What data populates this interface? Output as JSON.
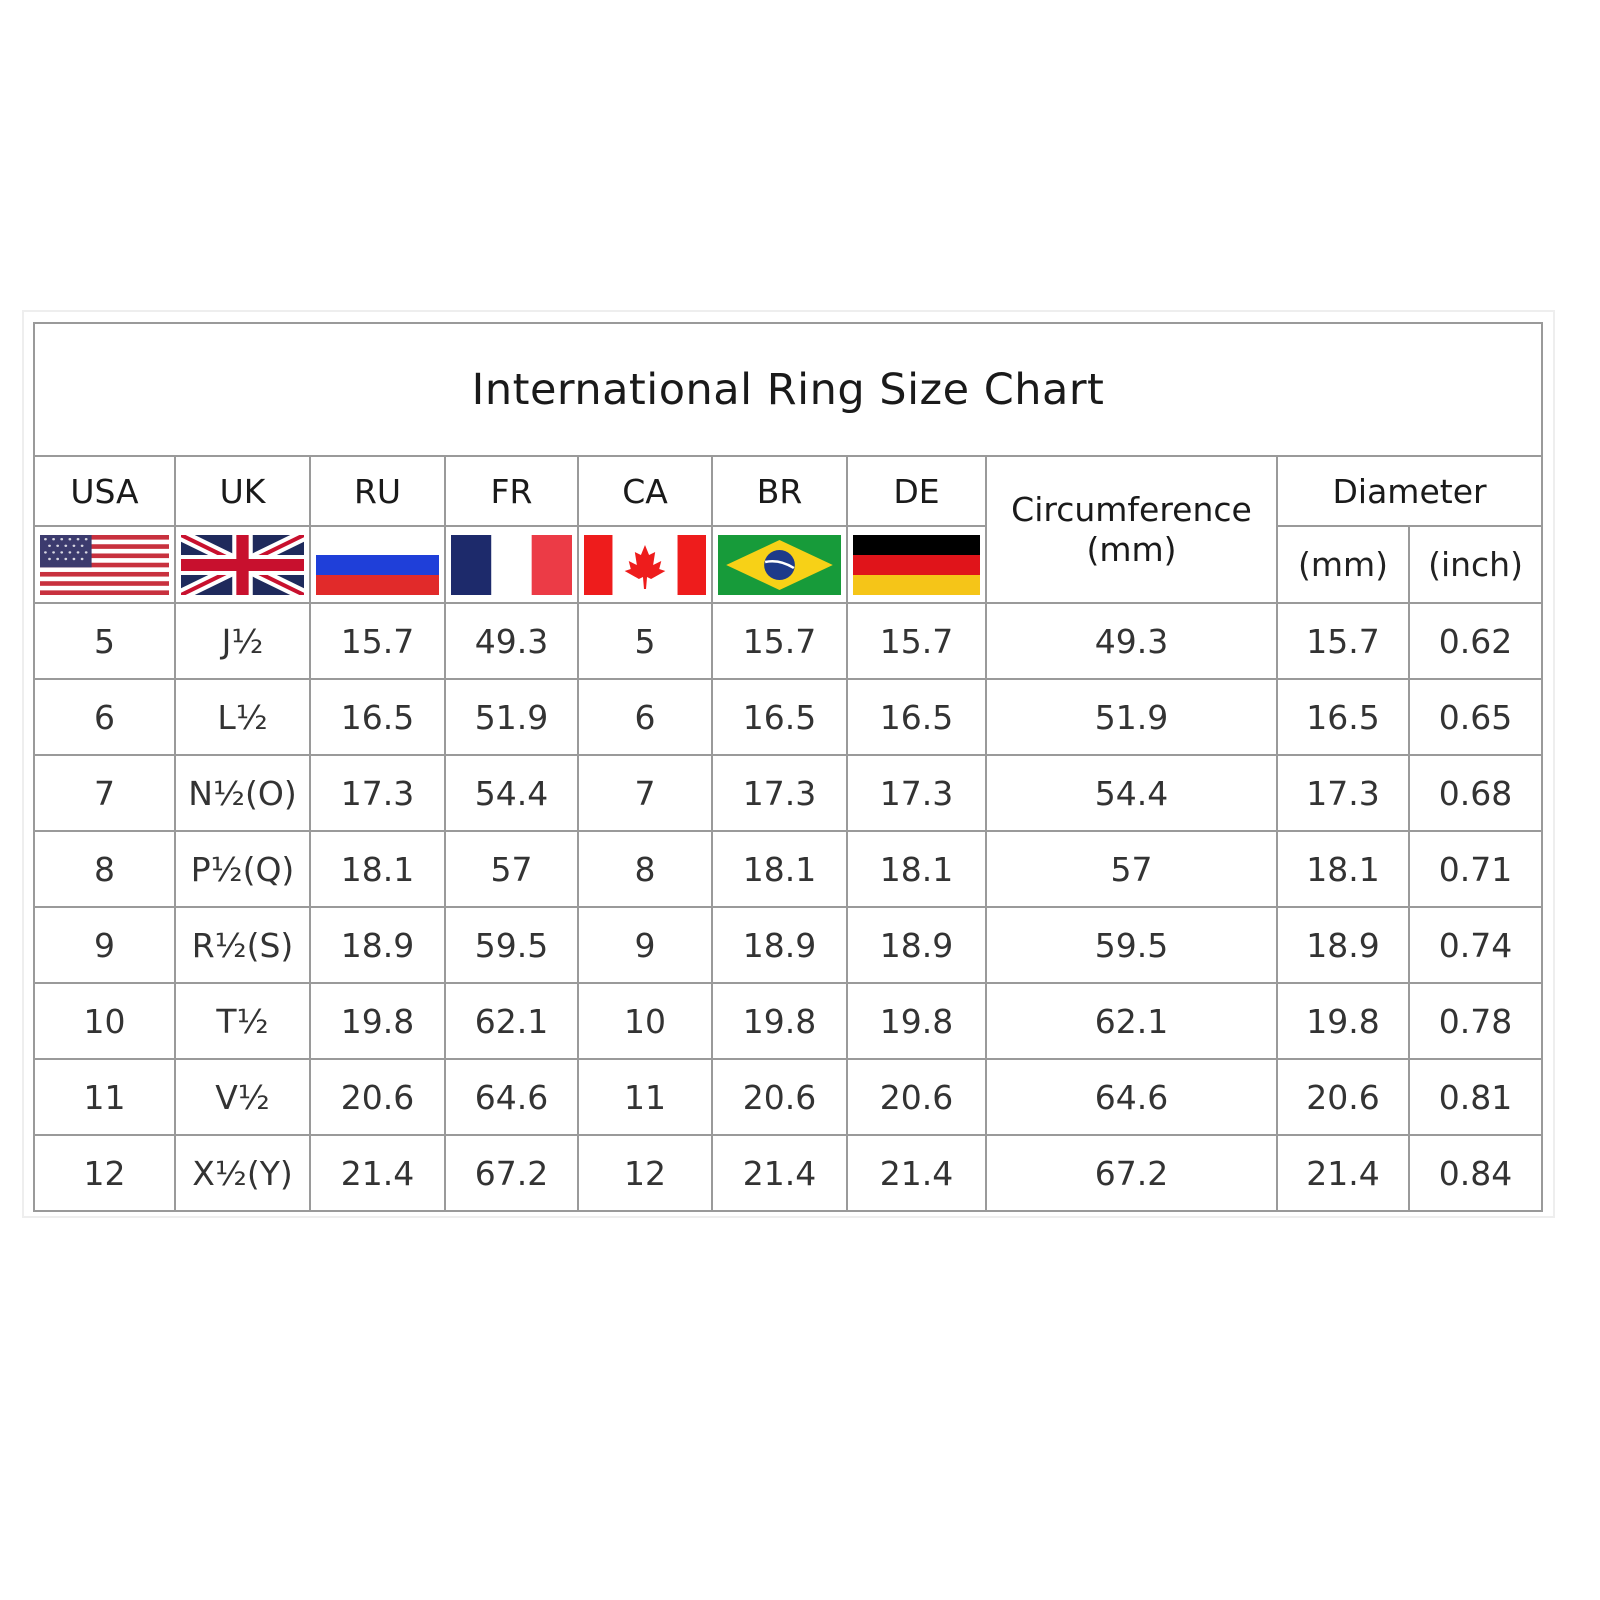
{
  "title": "International Ring Size Chart",
  "headers": {
    "countries": [
      "USA",
      "UK",
      "RU",
      "FR",
      "CA",
      "BR",
      "DE"
    ],
    "circumference": "Circumference",
    "circumference_unit": "(mm)",
    "diameter": "Diameter",
    "diameter_mm": "(mm)",
    "diameter_inch": "(inch)"
  },
  "flags": [
    "us-flag",
    "uk-flag",
    "russia-flag",
    "france-flag",
    "canada-flag",
    "brazil-flag",
    "germany-flag"
  ],
  "chart_data": {
    "type": "table",
    "title": "International Ring Size Chart",
    "columns": [
      "USA",
      "UK",
      "RU",
      "FR",
      "CA",
      "BR",
      "DE",
      "Circumference (mm)",
      "Diameter (mm)",
      "Diameter (inch)"
    ],
    "rows": [
      [
        "5",
        "J½",
        "15.7",
        "49.3",
        "5",
        "15.7",
        "15.7",
        "49.3",
        "15.7",
        "0.62"
      ],
      [
        "6",
        "L½",
        "16.5",
        "51.9",
        "6",
        "16.5",
        "16.5",
        "51.9",
        "16.5",
        "0.65"
      ],
      [
        "7",
        "N½(O)",
        "17.3",
        "54.4",
        "7",
        "17.3",
        "17.3",
        "54.4",
        "17.3",
        "0.68"
      ],
      [
        "8",
        "P½(Q)",
        "18.1",
        "57",
        "8",
        "18.1",
        "18.1",
        "57",
        "18.1",
        "0.71"
      ],
      [
        "9",
        "R½(S)",
        "18.9",
        "59.5",
        "9",
        "18.9",
        "18.9",
        "59.5",
        "18.9",
        "0.74"
      ],
      [
        "10",
        "T½",
        "19.8",
        "62.1",
        "10",
        "19.8",
        "19.8",
        "62.1",
        "19.8",
        "0.78"
      ],
      [
        "11",
        "V½",
        "20.6",
        "64.6",
        "11",
        "20.6",
        "20.6",
        "64.6",
        "20.6",
        "0.81"
      ],
      [
        "12",
        "X½(Y)",
        "21.4",
        "67.2",
        "12",
        "21.4",
        "21.4",
        "67.2",
        "21.4",
        "0.84"
      ]
    ]
  }
}
